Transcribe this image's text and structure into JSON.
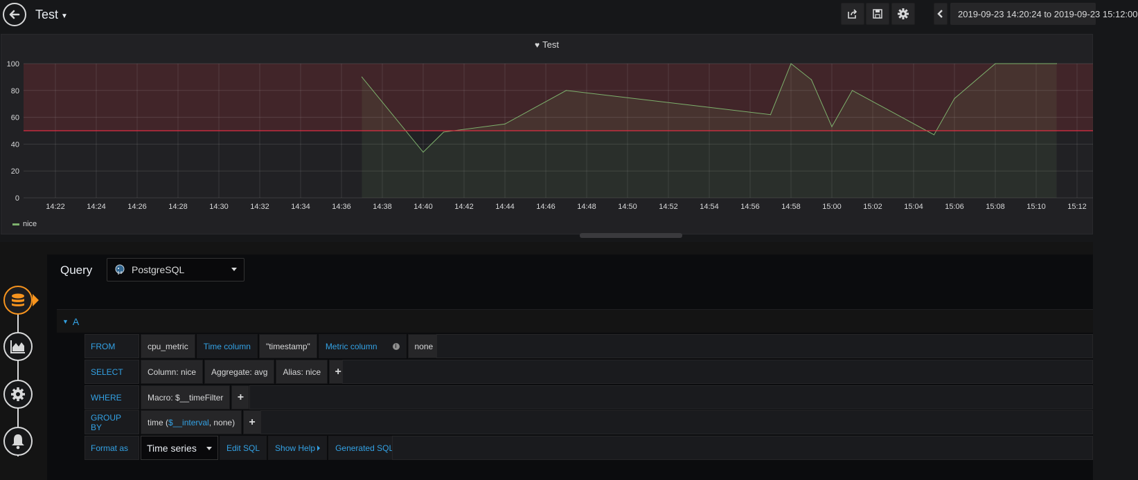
{
  "header": {
    "title": "Test",
    "time_range": "2019-09-23 14:20:24 to 2019-09-23 15:12:00"
  },
  "panel": {
    "title": "Test",
    "legend": "nice"
  },
  "chart_data": {
    "type": "line",
    "title": "Test",
    "series": [
      {
        "name": "nice",
        "x": [
          "14:37",
          "14:40",
          "14:41",
          "14:44",
          "14:47",
          "14:57",
          "14:58",
          "14:59",
          "15:00",
          "15:01",
          "15:05",
          "15:06",
          "15:08",
          "15:11"
        ],
        "values": [
          90,
          34,
          49,
          55,
          80,
          62,
          100,
          88,
          53,
          80,
          47,
          74,
          100,
          100
        ]
      }
    ],
    "x_ticks": [
      "14:22",
      "14:24",
      "14:26",
      "14:28",
      "14:30",
      "14:32",
      "14:34",
      "14:36",
      "14:38",
      "14:40",
      "14:42",
      "14:44",
      "14:46",
      "14:48",
      "14:50",
      "14:52",
      "14:54",
      "14:56",
      "14:58",
      "15:00",
      "15:02",
      "15:04",
      "15:06",
      "15:08",
      "15:10",
      "15:12"
    ],
    "y_ticks": [
      "0",
      "20",
      "40",
      "60",
      "80",
      "100"
    ],
    "ylim": [
      0,
      100
    ],
    "threshold": 50,
    "grid": true,
    "legend_position": "bottom-left",
    "colors": {
      "series": "#7eb26d",
      "threshold": "#e02f44",
      "threshold_fill": "#5c2a2e"
    }
  },
  "query": {
    "label": "Query",
    "datasource": "PostgreSQL",
    "row_label": "A",
    "from": {
      "keyword": "FROM",
      "table": "cpu_metric",
      "time_column_label": "Time column",
      "time_column": "\"timestamp\"",
      "metric_column_label": "Metric column",
      "metric_column": "none"
    },
    "select": {
      "keyword": "SELECT",
      "column": "Column: nice",
      "aggregate": "Aggregate: avg",
      "alias": "Alias: nice"
    },
    "where": {
      "keyword": "WHERE",
      "macro": "Macro: $__timeFilter"
    },
    "group_by": {
      "keyword": "GROUP BY",
      "prefix": "time (",
      "interval": "$__interval",
      "suffix": ", none)"
    },
    "format": {
      "label": "Format as",
      "value": "Time series",
      "edit_sql": "Edit SQL",
      "show_help": "Show Help",
      "generated_sql": "Generated SQL"
    }
  }
}
